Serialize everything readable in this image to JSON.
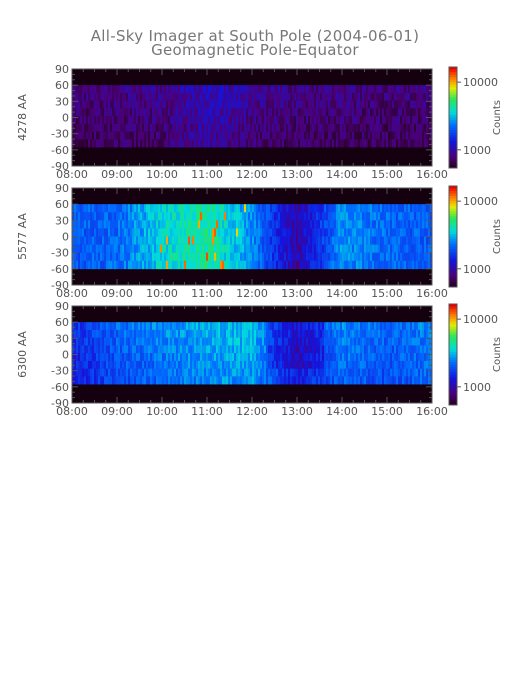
{
  "chart_data": {
    "type": "heatmap",
    "title": "All-Sky Imager at South Pole (2004-06-01)",
    "subtitle": "Geomagnetic Pole-Equator",
    "x_ticks": [
      "08:00",
      "09:00",
      "10:00",
      "11:00",
      "12:00",
      "13:00",
      "14:00",
      "15:00",
      "16:00"
    ],
    "x_range": [
      "08:00",
      "16:00"
    ],
    "y_ticks": [
      90,
      60,
      30,
      0,
      -30,
      -60,
      -90
    ],
    "y_range": [
      -90,
      90
    ],
    "colorbar": {
      "label": "Counts",
      "scale": "log",
      "ticks": [
        1000,
        10000
      ],
      "tick_labels": [
        "1000",
        "10000"
      ]
    },
    "panels": [
      {
        "ylabel": "4278 AA",
        "valid_lat_range": [
          -55,
          60
        ],
        "intensity_note": "mostly low (~1000 counts), purple background with weak blue features around 11:00-12:00",
        "profile": [
          {
            "time": "08:00",
            "level": 0.1
          },
          {
            "time": "09:00",
            "level": 0.12
          },
          {
            "time": "10:00",
            "level": 0.13
          },
          {
            "time": "11:00",
            "level": 0.2
          },
          {
            "time": "12:00",
            "level": 0.15
          },
          {
            "time": "13:00",
            "level": 0.12
          },
          {
            "time": "14:00",
            "level": 0.12
          },
          {
            "time": "15:00",
            "level": 0.11
          },
          {
            "time": "16:00",
            "level": 0.11
          }
        ]
      },
      {
        "ylabel": "5577 AA",
        "valid_lat_range": [
          -60,
          60
        ],
        "intensity_note": "strong emission (cyan/green, up to yellow/red) 09:45-12:00, gap 12:15-13:15, moderate 13:30-16:00",
        "profile": [
          {
            "time": "08:00",
            "level": 0.38
          },
          {
            "time": "09:00",
            "level": 0.4
          },
          {
            "time": "10:00",
            "level": 0.55
          },
          {
            "time": "11:00",
            "level": 0.62
          },
          {
            "time": "12:00",
            "level": 0.45
          },
          {
            "time": "13:00",
            "level": 0.16
          },
          {
            "time": "14:00",
            "level": 0.46
          },
          {
            "time": "15:00",
            "level": 0.4
          },
          {
            "time": "16:00",
            "level": 0.38
          }
        ]
      },
      {
        "ylabel": "6300 AA",
        "valid_lat_range": [
          -55,
          60
        ],
        "intensity_note": "broad blue/cyan emission 08:15-16:00, green near 11:30-12:00, darker region 12:30-13:30",
        "profile": [
          {
            "time": "08:00",
            "level": 0.3
          },
          {
            "time": "09:00",
            "level": 0.4
          },
          {
            "time": "10:00",
            "level": 0.45
          },
          {
            "time": "11:00",
            "level": 0.5
          },
          {
            "time": "12:00",
            "level": 0.52
          },
          {
            "time": "13:00",
            "level": 0.3
          },
          {
            "time": "14:00",
            "level": 0.45
          },
          {
            "time": "15:00",
            "level": 0.4
          },
          {
            "time": "16:00",
            "level": 0.45
          }
        ]
      }
    ]
  }
}
